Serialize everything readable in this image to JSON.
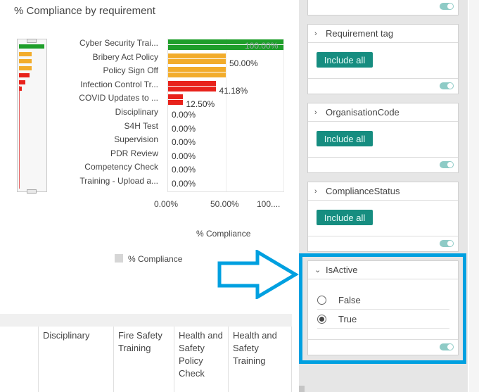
{
  "chart_title": "% Compliance by requirement",
  "chart_data": {
    "type": "bar",
    "orientation": "horizontal",
    "title": "% Compliance by requirement",
    "xlabel": "% Compliance",
    "ylabel": "",
    "xlim": [
      0,
      100
    ],
    "categories": [
      "Cyber Security Trai...",
      "Bribery Act Policy",
      "Policy Sign Off",
      "Infection Control Tr...",
      "COVID Updates to ...",
      "Disciplinary",
      "S4H Test",
      "Supervision",
      "PDR Review",
      "Competency Check",
      "Training - Upload a..."
    ],
    "values": [
      100,
      50,
      50,
      41.18,
      12.5,
      0,
      0,
      0,
      0,
      0,
      0
    ],
    "value_labels": [
      "100.00%",
      "50.00%",
      "",
      "41.18%",
      "12.50%",
      "0.00%",
      "0.00%",
      "0.00%",
      "0.00%",
      "0.00%",
      "0.00%"
    ],
    "x_ticks": [
      "0.00%",
      "50.00%",
      "100...."
    ],
    "legend": [
      "% Compliance"
    ],
    "colors": {
      "high": "#1e9e2a",
      "mid": "#f2ac2b",
      "low": "#e8221b",
      "legend": "#d6d6d6"
    }
  },
  "table": {
    "headers": [
      "Disciplinary",
      "Fire Safety Training",
      "Health and Safety Policy Check",
      "Health and Safety Training"
    ]
  },
  "sidebar": {
    "cards": [
      {
        "title": "Requirement tag",
        "button": "Include all"
      },
      {
        "title": "OrganisationCode",
        "button": "Include all"
      },
      {
        "title": "ComplianceStatus",
        "button": "Include all"
      }
    ],
    "isactive": {
      "title": "IsActive",
      "options": [
        {
          "label": "False",
          "selected": false
        },
        {
          "label": "True",
          "selected": true
        }
      ]
    }
  },
  "accent_color": "#00a0e0",
  "button_color": "#168d80"
}
